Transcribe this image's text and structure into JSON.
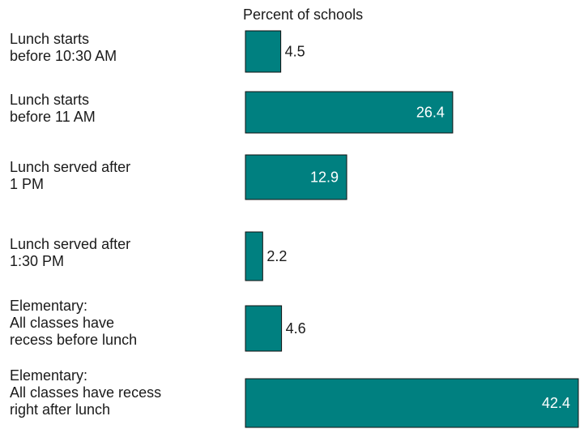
{
  "chart_data": {
    "type": "bar",
    "orientation": "horizontal",
    "title": "Percent of schools",
    "categories": [
      [
        "Lunch starts",
        "before 10:30 AM"
      ],
      [
        "Lunch starts",
        "before 11 AM"
      ],
      [
        "Lunch served after",
        "1 PM"
      ],
      [
        "Lunch served after",
        "1:30 PM"
      ],
      [
        "Elementary:",
        "All classes have",
        "recess before lunch"
      ],
      [
        "Elementary:",
        "All classes have recess",
        "right after lunch"
      ]
    ],
    "values": [
      4.5,
      26.4,
      12.9,
      2.2,
      4.6,
      42.4
    ],
    "value_labels": [
      "4.5",
      "26.4",
      "12.9",
      "2.2",
      "4.6",
      "42.4"
    ],
    "xlim": [
      0,
      42.4
    ],
    "grid": false,
    "legend": "none",
    "bar_color": "#008080",
    "label_inside_color": "#ffffff",
    "label_outside_color": "#1a1a1a"
  }
}
